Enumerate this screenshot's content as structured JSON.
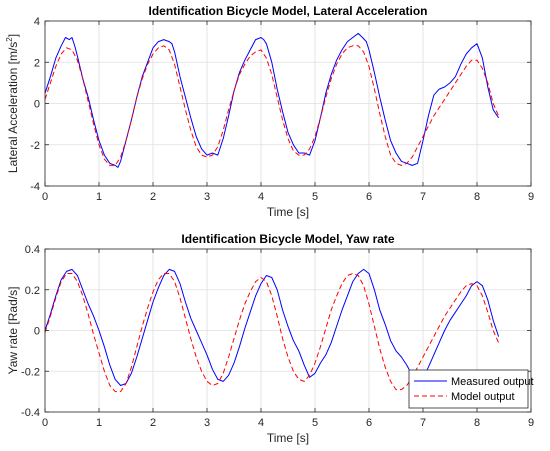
{
  "chart_data": [
    {
      "type": "line",
      "title": "Identification Bicycle Model, Lateral Acceleration",
      "xlabel": "Time [s]",
      "ylabel": "Lateral Acceleration [m/s",
      "ylabel_sup": "2",
      "ylabel_end": "]",
      "xlim": [
        0,
        9
      ],
      "ylim": [
        -4,
        4
      ],
      "xticks": [
        "0",
        "1",
        "2",
        "3",
        "4",
        "5",
        "6",
        "7",
        "8",
        "9"
      ],
      "yticks": [
        "-4",
        "-2",
        "0",
        "2",
        "4"
      ],
      "grid": true,
      "series": [
        {
          "name": "Measured output",
          "color": "#0000ff",
          "style": "solid",
          "x": [
            0,
            0.1,
            0.2,
            0.3,
            0.38,
            0.45,
            0.5,
            0.55,
            0.6,
            0.7,
            0.8,
            0.9,
            1.0,
            1.1,
            1.2,
            1.3,
            1.35,
            1.4,
            1.5,
            1.6,
            1.7,
            1.8,
            1.9,
            2.0,
            2.1,
            2.2,
            2.3,
            2.35,
            2.4,
            2.5,
            2.6,
            2.7,
            2.8,
            2.9,
            3.0,
            3.1,
            3.2,
            3.3,
            3.4,
            3.5,
            3.6,
            3.7,
            3.8,
            3.9,
            4.0,
            4.05,
            4.1,
            4.2,
            4.3,
            4.4,
            4.5,
            4.6,
            4.7,
            4.8,
            4.9,
            5.0,
            5.1,
            5.2,
            5.3,
            5.4,
            5.5,
            5.6,
            5.7,
            5.8,
            5.88,
            5.95,
            6.0,
            6.1,
            6.2,
            6.3,
            6.4,
            6.5,
            6.6,
            6.7,
            6.8,
            6.9,
            7.0,
            7.1,
            7.2,
            7.3,
            7.4,
            7.5,
            7.6,
            7.7,
            7.8,
            7.9,
            8.0,
            8.1,
            8.2,
            8.3,
            8.4
          ],
          "y": [
            0.5,
            1.3,
            2.2,
            2.8,
            3.2,
            3.1,
            3.2,
            2.8,
            2.3,
            1.2,
            0.3,
            -0.8,
            -1.8,
            -2.5,
            -2.9,
            -3.0,
            -3.1,
            -2.8,
            -1.8,
            -0.8,
            0.3,
            1.3,
            2.0,
            2.7,
            3.0,
            3.1,
            3.0,
            2.9,
            2.5,
            1.3,
            0.3,
            -0.7,
            -1.6,
            -2.2,
            -2.5,
            -2.4,
            -2.5,
            -1.7,
            -0.6,
            0.6,
            1.5,
            2.1,
            2.6,
            3.1,
            3.2,
            3.1,
            2.9,
            2.0,
            0.7,
            -0.4,
            -1.4,
            -2.0,
            -2.4,
            -2.4,
            -2.5,
            -1.8,
            -0.7,
            0.5,
            1.4,
            2.1,
            2.6,
            3.0,
            3.2,
            3.4,
            3.2,
            3.0,
            2.6,
            1.5,
            0.3,
            -0.8,
            -1.8,
            -2.4,
            -2.8,
            -2.9,
            -3.0,
            -2.9,
            -1.8,
            -0.6,
            0.4,
            0.7,
            0.8,
            1.0,
            1.3,
            1.9,
            2.4,
            2.7,
            2.9,
            2.2,
            0.8,
            -0.3,
            -0.7
          ]
        },
        {
          "name": "Model output",
          "color": "#ff0000",
          "style": "dashed",
          "x": [
            0,
            0.1,
            0.2,
            0.3,
            0.4,
            0.5,
            0.6,
            0.7,
            0.8,
            0.9,
            1.0,
            1.1,
            1.2,
            1.3,
            1.4,
            1.5,
            1.6,
            1.7,
            1.8,
            1.9,
            2.0,
            2.1,
            2.2,
            2.3,
            2.4,
            2.5,
            2.6,
            2.7,
            2.8,
            2.9,
            3.0,
            3.1,
            3.2,
            3.3,
            3.4,
            3.5,
            3.6,
            3.7,
            3.8,
            3.9,
            4.0,
            4.1,
            4.2,
            4.3,
            4.4,
            4.5,
            4.6,
            4.7,
            4.8,
            4.9,
            5.0,
            5.1,
            5.2,
            5.3,
            5.4,
            5.5,
            5.6,
            5.7,
            5.8,
            5.9,
            6.0,
            6.1,
            6.2,
            6.3,
            6.4,
            6.5,
            6.6,
            6.7,
            6.8,
            6.9,
            7.0,
            7.1,
            7.2,
            7.3,
            7.4,
            7.5,
            7.6,
            7.7,
            7.8,
            7.9,
            8.0,
            8.1,
            8.2,
            8.3,
            8.4
          ],
          "y": [
            0.2,
            1.0,
            1.8,
            2.4,
            2.7,
            2.6,
            2.1,
            1.2,
            0.1,
            -1.0,
            -2.0,
            -2.7,
            -3.0,
            -3.0,
            -2.6,
            -1.8,
            -0.8,
            0.3,
            1.2,
            1.9,
            2.4,
            2.7,
            2.8,
            2.6,
            1.9,
            0.8,
            -0.3,
            -1.3,
            -2.1,
            -2.5,
            -2.6,
            -2.5,
            -2.1,
            -1.3,
            -0.3,
            0.6,
            1.4,
            1.9,
            2.3,
            2.5,
            2.6,
            2.2,
            1.4,
            0.3,
            -0.8,
            -1.7,
            -2.3,
            -2.5,
            -2.5,
            -2.2,
            -1.6,
            -0.7,
            0.3,
            1.2,
            1.9,
            2.4,
            2.7,
            2.8,
            2.8,
            2.5,
            1.8,
            0.7,
            -0.5,
            -1.6,
            -2.5,
            -2.9,
            -3.0,
            -2.9,
            -2.6,
            -2.1,
            -1.6,
            -1.1,
            -0.6,
            -0.2,
            0.2,
            0.6,
            1.0,
            1.4,
            1.8,
            2.1,
            2.1,
            1.7,
            1.0,
            0.0,
            -0.6
          ]
        }
      ]
    },
    {
      "type": "line",
      "title": "Identification Bicycle Model, Yaw rate",
      "xlabel": "Time [s]",
      "ylabel": "Yaw rate [Rad/s]",
      "xlim": [
        0,
        9
      ],
      "ylim": [
        -0.4,
        0.4
      ],
      "xticks": [
        "0",
        "1",
        "2",
        "3",
        "4",
        "5",
        "6",
        "7",
        "8",
        "9"
      ],
      "yticks": [
        "-0.4",
        "-0.2",
        "0",
        "0.2",
        "0.4"
      ],
      "grid": true,
      "legend_position": "bottom-right",
      "series": [
        {
          "name": "Measured output",
          "color": "#0000ff",
          "style": "solid",
          "x": [
            0,
            0.1,
            0.2,
            0.3,
            0.4,
            0.5,
            0.6,
            0.7,
            0.8,
            0.9,
            1.0,
            1.1,
            1.2,
            1.3,
            1.4,
            1.5,
            1.6,
            1.7,
            1.8,
            1.9,
            2.0,
            2.1,
            2.2,
            2.3,
            2.4,
            2.5,
            2.6,
            2.7,
            2.8,
            2.9,
            3.0,
            3.1,
            3.2,
            3.3,
            3.4,
            3.5,
            3.6,
            3.7,
            3.8,
            3.9,
            4.0,
            4.1,
            4.2,
            4.3,
            4.4,
            4.5,
            4.6,
            4.7,
            4.8,
            4.9,
            5.0,
            5.1,
            5.2,
            5.3,
            5.4,
            5.5,
            5.6,
            5.7,
            5.8,
            5.9,
            6.0,
            6.1,
            6.2,
            6.3,
            6.4,
            6.5,
            6.6,
            6.7,
            6.8,
            6.9,
            7.0,
            7.1,
            7.2,
            7.3,
            7.4,
            7.5,
            7.6,
            7.7,
            7.8,
            7.9,
            8.0,
            8.1,
            8.2,
            8.3,
            8.4
          ],
          "y": [
            0.0,
            0.08,
            0.17,
            0.25,
            0.29,
            0.3,
            0.27,
            0.2,
            0.13,
            0.07,
            0.0,
            -0.08,
            -0.17,
            -0.24,
            -0.27,
            -0.26,
            -0.21,
            -0.13,
            -0.04,
            0.05,
            0.14,
            0.21,
            0.27,
            0.3,
            0.29,
            0.23,
            0.14,
            0.06,
            0.0,
            -0.06,
            -0.12,
            -0.19,
            -0.24,
            -0.25,
            -0.22,
            -0.16,
            -0.08,
            0.01,
            0.09,
            0.17,
            0.23,
            0.27,
            0.26,
            0.2,
            0.1,
            0.02,
            -0.05,
            -0.1,
            -0.17,
            -0.23,
            -0.21,
            -0.16,
            -0.12,
            -0.06,
            0.02,
            0.1,
            0.17,
            0.24,
            0.28,
            0.3,
            0.28,
            0.2,
            0.1,
            0.03,
            -0.05,
            -0.1,
            -0.13,
            -0.17,
            -0.22,
            -0.24,
            -0.23,
            -0.18,
            -0.12,
            -0.06,
            0.0,
            0.05,
            0.09,
            0.13,
            0.17,
            0.22,
            0.24,
            0.22,
            0.15,
            0.05,
            -0.03
          ]
        },
        {
          "name": "Model output",
          "color": "#ff0000",
          "style": "dashed",
          "x": [
            0,
            0.1,
            0.2,
            0.3,
            0.4,
            0.5,
            0.6,
            0.7,
            0.8,
            0.9,
            1.0,
            1.1,
            1.2,
            1.3,
            1.4,
            1.5,
            1.6,
            1.7,
            1.8,
            1.9,
            2.0,
            2.1,
            2.2,
            2.3,
            2.4,
            2.5,
            2.6,
            2.7,
            2.8,
            2.9,
            3.0,
            3.1,
            3.2,
            3.3,
            3.4,
            3.5,
            3.6,
            3.7,
            3.8,
            3.9,
            4.0,
            4.1,
            4.2,
            4.3,
            4.4,
            4.5,
            4.6,
            4.7,
            4.8,
            4.9,
            5.0,
            5.1,
            5.2,
            5.3,
            5.4,
            5.5,
            5.6,
            5.7,
            5.8,
            5.9,
            6.0,
            6.1,
            6.2,
            6.3,
            6.4,
            6.5,
            6.6,
            6.7,
            6.8,
            6.9,
            7.0,
            7.1,
            7.2,
            7.3,
            7.4,
            7.5,
            7.6,
            7.7,
            7.8,
            7.9,
            8.0,
            8.1,
            8.2,
            8.3,
            8.4
          ],
          "y": [
            -0.01,
            0.07,
            0.16,
            0.24,
            0.28,
            0.28,
            0.24,
            0.17,
            0.08,
            -0.02,
            -0.11,
            -0.2,
            -0.27,
            -0.3,
            -0.3,
            -0.26,
            -0.18,
            -0.08,
            0.02,
            0.11,
            0.19,
            0.25,
            0.28,
            0.28,
            0.24,
            0.16,
            0.06,
            -0.04,
            -0.13,
            -0.2,
            -0.25,
            -0.27,
            -0.26,
            -0.21,
            -0.13,
            -0.04,
            0.05,
            0.13,
            0.19,
            0.24,
            0.26,
            0.24,
            0.17,
            0.07,
            -0.04,
            -0.13,
            -0.2,
            -0.24,
            -0.25,
            -0.22,
            -0.16,
            -0.08,
            0.01,
            0.1,
            0.17,
            0.23,
            0.27,
            0.28,
            0.27,
            0.22,
            0.13,
            0.02,
            -0.09,
            -0.18,
            -0.25,
            -0.29,
            -0.29,
            -0.27,
            -0.23,
            -0.18,
            -0.13,
            -0.08,
            -0.03,
            0.02,
            0.07,
            0.11,
            0.15,
            0.19,
            0.22,
            0.23,
            0.22,
            0.17,
            0.09,
            0.0,
            -0.06
          ]
        }
      ]
    }
  ]
}
